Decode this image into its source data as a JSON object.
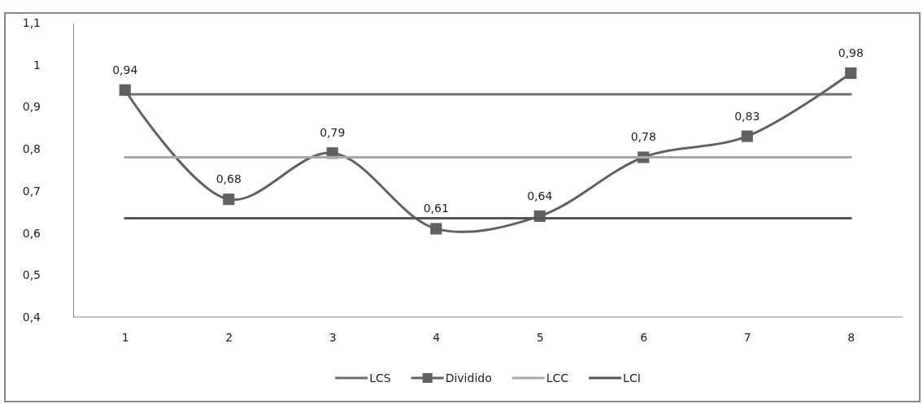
{
  "chart_data": {
    "type": "line",
    "categories": [
      "1",
      "2",
      "3",
      "4",
      "5",
      "6",
      "7",
      "8"
    ],
    "ylim": [
      0.4,
      1.1
    ],
    "yticks": [
      {
        "value": 0.4,
        "label": "0,4"
      },
      {
        "value": 0.5,
        "label": "0,5"
      },
      {
        "value": 0.6,
        "label": "0,6"
      },
      {
        "value": 0.7,
        "label": "0,7"
      },
      {
        "value": 0.8,
        "label": "0,8"
      },
      {
        "value": 0.9,
        "label": "0,9"
      },
      {
        "value": 1,
        "label": "1"
      },
      {
        "value": 1.1,
        "label": "1,1"
      }
    ],
    "grid": false,
    "legend": "bottom",
    "series": [
      {
        "name": "LCS",
        "color": "#6e6e6e",
        "marker": "none",
        "values": [
          0.93,
          0.93,
          0.93,
          0.93,
          0.93,
          0.93,
          0.93,
          0.93
        ]
      },
      {
        "name": "Dividido",
        "color": "#616161",
        "marker": "square",
        "values": [
          0.94,
          0.68,
          0.79,
          0.61,
          0.64,
          0.78,
          0.83,
          0.98
        ],
        "value_labels": [
          "0,94",
          "0,68",
          "0,79",
          "0,61",
          "0,64",
          "0,78",
          "0,83",
          "0,98"
        ]
      },
      {
        "name": "LCC",
        "color": "#a8a8a8",
        "marker": "none",
        "values": [
          0.78,
          0.78,
          0.78,
          0.78,
          0.78,
          0.78,
          0.78,
          0.78
        ]
      },
      {
        "name": "LCI",
        "color": "#555555",
        "marker": "none",
        "values": [
          0.635,
          0.635,
          0.635,
          0.635,
          0.635,
          0.635,
          0.635,
          0.635
        ]
      }
    ]
  }
}
